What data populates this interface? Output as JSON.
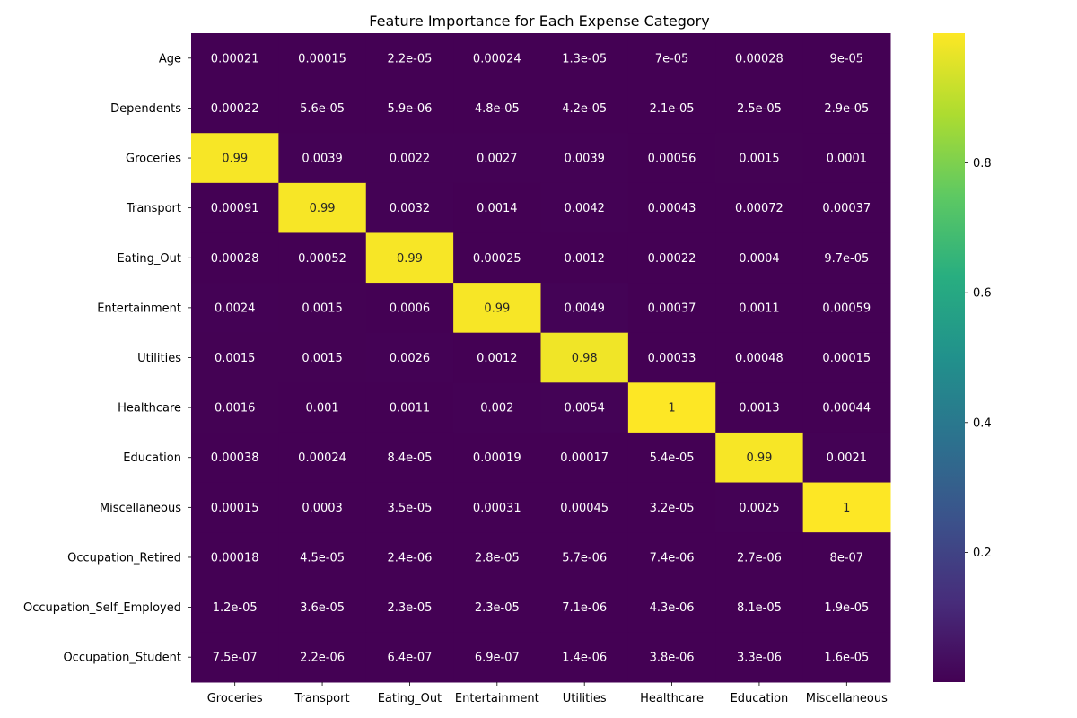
{
  "chart_data": {
    "type": "heatmap",
    "title": "Feature Importance for Each Expense Category",
    "xlabel": "",
    "ylabel": "",
    "colormap": "viridis",
    "color_range": [
      0,
      1
    ],
    "colorbar_ticks": [
      "0.2",
      "0.4",
      "0.6",
      "0.8"
    ],
    "colorbar_tick_values": [
      0.2,
      0.4,
      0.6,
      0.8
    ],
    "columns": [
      "Groceries",
      "Transport",
      "Eating_Out",
      "Entertainment",
      "Utilities",
      "Healthcare",
      "Education",
      "Miscellaneous"
    ],
    "rows": [
      "Age",
      "Dependents",
      "Groceries",
      "Transport",
      "Eating_Out",
      "Entertainment",
      "Utilities",
      "Healthcare",
      "Education",
      "Miscellaneous",
      "Occupation_Retired",
      "Occupation_Self_Employed",
      "Occupation_Student"
    ],
    "labels": [
      [
        "0.00021",
        "0.00015",
        "2.2e-05",
        "0.00024",
        "1.3e-05",
        "7e-05",
        "0.00028",
        "9e-05"
      ],
      [
        "0.00022",
        "5.6e-05",
        "5.9e-06",
        "4.8e-05",
        "4.2e-05",
        "2.1e-05",
        "2.5e-05",
        "2.9e-05"
      ],
      [
        "0.99",
        "0.0039",
        "0.0022",
        "0.0027",
        "0.0039",
        "0.00056",
        "0.0015",
        "0.0001"
      ],
      [
        "0.00091",
        "0.99",
        "0.0032",
        "0.0014",
        "0.0042",
        "0.00043",
        "0.00072",
        "0.00037"
      ],
      [
        "0.00028",
        "0.00052",
        "0.99",
        "0.00025",
        "0.0012",
        "0.00022",
        "0.0004",
        "9.7e-05"
      ],
      [
        "0.0024",
        "0.0015",
        "0.0006",
        "0.99",
        "0.0049",
        "0.00037",
        "0.0011",
        "0.00059"
      ],
      [
        "0.0015",
        "0.0015",
        "0.0026",
        "0.0012",
        "0.98",
        "0.00033",
        "0.00048",
        "0.00015"
      ],
      [
        "0.0016",
        "0.001",
        "0.0011",
        "0.002",
        "0.0054",
        "1",
        "0.0013",
        "0.00044"
      ],
      [
        "0.00038",
        "0.00024",
        "8.4e-05",
        "0.00019",
        "0.00017",
        "5.4e-05",
        "0.99",
        "0.0021"
      ],
      [
        "0.00015",
        "0.0003",
        "3.5e-05",
        "0.00031",
        "0.00045",
        "3.2e-05",
        "0.0025",
        "1"
      ],
      [
        "0.00018",
        "4.5e-05",
        "2.4e-06",
        "2.8e-05",
        "5.7e-06",
        "7.4e-06",
        "2.7e-06",
        "8e-07"
      ],
      [
        "1.2e-05",
        "3.6e-05",
        "2.3e-05",
        "2.3e-05",
        "7.1e-06",
        "4.3e-06",
        "8.1e-05",
        "1.9e-05"
      ],
      [
        "7.5e-07",
        "2.2e-06",
        "6.4e-07",
        "6.9e-07",
        "1.4e-06",
        "3.8e-06",
        "3.3e-06",
        "1.6e-05"
      ]
    ]
  }
}
